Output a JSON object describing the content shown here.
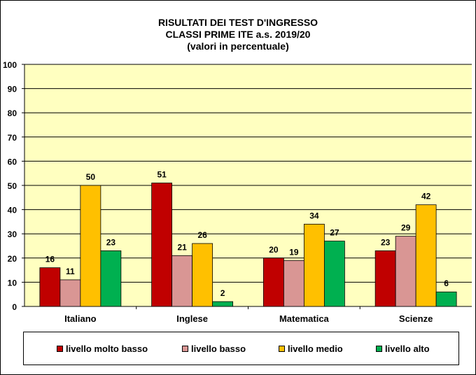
{
  "chart_data": {
    "type": "bar",
    "title": [
      "RISULTATI DEI TEST D'INGRESSO",
      "CLASSI PRIME  ITE a.s. 2019/20",
      "(valori in percentuale)"
    ],
    "categories": [
      "Italiano",
      "Inglese",
      "Matematica",
      "Scienze"
    ],
    "series": [
      {
        "name": "livello molto  basso",
        "color": "#c00000",
        "values": [
          16,
          51,
          20,
          23
        ]
      },
      {
        "name": "livello basso",
        "color": "#d99694",
        "values": [
          11,
          21,
          19,
          29
        ]
      },
      {
        "name": "livello medio",
        "color": "#ffc000",
        "values": [
          50,
          26,
          34,
          42
        ]
      },
      {
        "name": "livello alto",
        "color": "#00b050",
        "values": [
          23,
          2,
          27,
          6
        ]
      }
    ],
    "ylim": [
      0,
      100
    ],
    "yticks": [
      "0",
      "10",
      "20",
      "30",
      "40",
      "50",
      "60",
      "70",
      "80",
      "90",
      "100"
    ],
    "grid": true,
    "plot_background": "#ffffc0",
    "legend_position": "bottom"
  }
}
